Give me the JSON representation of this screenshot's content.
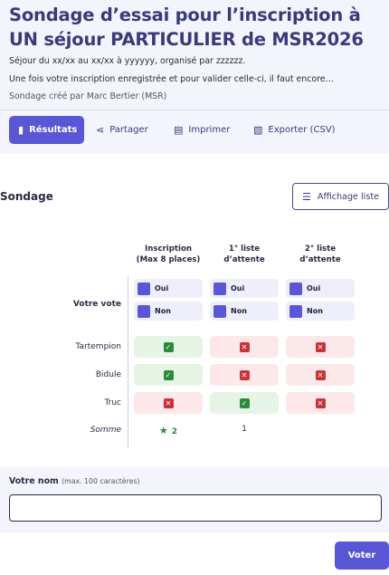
{
  "header": {
    "title": "Sondage d’essai pour l’inscription à UN séjour PARTICULIER de MSR2026",
    "description_1": "Séjour du xx/xx au xx/xx à yyyyyy, organisé par zzzzzz.",
    "description_2": "Une fois votre inscription enregistrée et pour valider celle-ci, il faut encore…",
    "creator": "Sondage créé par Marc Bertier (MSR)"
  },
  "tabs": [
    {
      "label": "Résultats",
      "icon": "bar-chart-icon"
    },
    {
      "label": "Partager",
      "icon": "share-icon"
    },
    {
      "label": "Imprimer",
      "icon": "printer-icon"
    },
    {
      "label": "Exporter (CSV)",
      "icon": "csv-file-icon"
    }
  ],
  "section": {
    "title": "Sondage",
    "list_button": "Affichage liste"
  },
  "columns": [
    {
      "line1": "Inscription",
      "line2": "(Max 8 places)"
    },
    {
      "line1": "1° liste",
      "line2": "d’attente"
    },
    {
      "line1": "2° liste",
      "line2": "d’attente"
    }
  ],
  "vote": {
    "label": "Votre vote",
    "yes": "Oui",
    "no": "Non"
  },
  "participants": [
    {
      "name": "Tartempion",
      "answers": [
        "yes",
        "no",
        "no"
      ]
    },
    {
      "name": "Bidule",
      "answers": [
        "yes",
        "no",
        "no"
      ]
    },
    {
      "name": "Truc",
      "answers": [
        "no",
        "yes",
        "no"
      ]
    }
  ],
  "totals": {
    "label": "Somme",
    "values": [
      "2",
      "1",
      ""
    ]
  },
  "name_form": {
    "label": "Votre nom",
    "hint": "(max. 100 caractères)",
    "value": "",
    "submit": "Voter"
  },
  "colors": {
    "accent": "#5a57d6",
    "yes": "#2d8a3a",
    "no": "#c8323a"
  }
}
